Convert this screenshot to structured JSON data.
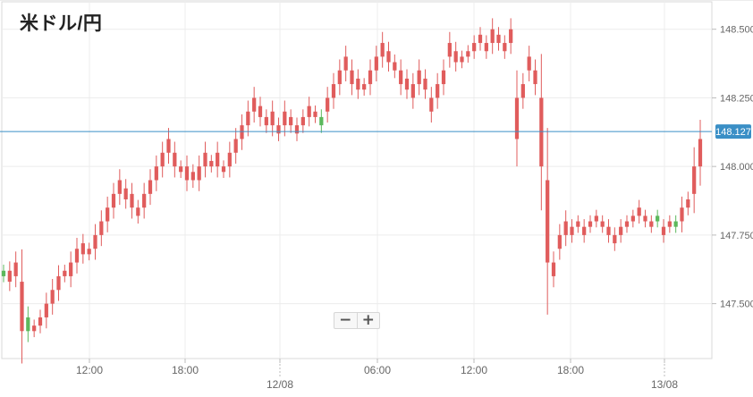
{
  "title": "米ドル/円",
  "zoom": {
    "minus_label": "−",
    "plus_label": "+"
  },
  "colors": {
    "up": "#5cb85c",
    "down": "#e05c5c",
    "current_line": "#3a8fc6",
    "current_badge": "#3a8fc6",
    "grid": "#ececec",
    "axis_text": "#666666"
  },
  "chart_data": {
    "type": "candlestick",
    "title": "米ドル/円",
    "xlabel": "",
    "ylabel": "",
    "x_tick_labels": [
      {
        "time": "12:00",
        "date": ""
      },
      {
        "time": "18:00",
        "date": ""
      },
      {
        "time": "",
        "date": "12/08"
      },
      {
        "time": "06:00",
        "date": ""
      },
      {
        "time": "12:00",
        "date": ""
      },
      {
        "time": "18:00",
        "date": ""
      },
      {
        "time": "",
        "date": "13/08"
      }
    ],
    "y_tick_labels": [
      "148.500",
      "148.250",
      "148.000",
      "147.750",
      "147.500"
    ],
    "y_ticks": [
      148.5,
      148.25,
      148.0,
      147.75,
      147.5
    ],
    "ylim": [
      147.3,
      148.6
    ],
    "grid": true,
    "current_price": 148.127,
    "current_price_label": "148.127",
    "candle_series": [
      [
        147.6,
        147.62
      ],
      [
        147.62,
        147.58
      ],
      [
        147.65,
        147.6
      ],
      [
        147.58,
        147.4
      ],
      [
        147.4,
        147.45
      ],
      [
        147.42,
        147.4
      ],
      [
        147.45,
        147.42
      ],
      [
        147.5,
        147.45
      ],
      [
        147.55,
        147.5
      ],
      [
        147.6,
        147.55
      ],
      [
        147.62,
        147.6
      ],
      [
        147.65,
        147.6
      ],
      [
        147.7,
        147.65
      ],
      [
        147.72,
        147.68
      ],
      [
        147.7,
        147.68
      ],
      [
        147.75,
        147.7
      ],
      [
        147.8,
        147.75
      ],
      [
        147.85,
        147.8
      ],
      [
        147.9,
        147.85
      ],
      [
        147.95,
        147.9
      ],
      [
        147.92,
        147.88
      ],
      [
        147.9,
        147.85
      ],
      [
        147.85,
        147.82
      ],
      [
        147.9,
        147.85
      ],
      [
        147.95,
        147.9
      ],
      [
        148.0,
        147.95
      ],
      [
        148.05,
        148.0
      ],
      [
        148.1,
        148.05
      ],
      [
        148.05,
        148.0
      ],
      [
        148.0,
        147.98
      ],
      [
        148.0,
        147.95
      ],
      [
        147.98,
        147.95
      ],
      [
        148.0,
        147.95
      ],
      [
        148.05,
        148.0
      ],
      [
        148.02,
        148.0
      ],
      [
        148.05,
        148.0
      ],
      [
        148.0,
        147.98
      ],
      [
        148.05,
        148.0
      ],
      [
        148.1,
        148.05
      ],
      [
        148.15,
        148.1
      ],
      [
        148.2,
        148.15
      ],
      [
        148.25,
        148.2
      ],
      [
        148.22,
        148.18
      ],
      [
        148.18,
        148.15
      ],
      [
        148.2,
        148.15
      ],
      [
        148.15,
        148.12
      ],
      [
        148.2,
        148.15
      ],
      [
        148.18,
        148.15
      ],
      [
        148.15,
        148.12
      ],
      [
        148.18,
        148.15
      ],
      [
        148.22,
        148.18
      ],
      [
        148.2,
        148.18
      ],
      [
        148.15,
        148.18
      ],
      [
        148.25,
        148.2
      ],
      [
        148.3,
        148.25
      ],
      [
        148.35,
        148.3
      ],
      [
        148.4,
        148.35
      ],
      [
        148.35,
        148.3
      ],
      [
        148.32,
        148.28
      ],
      [
        148.3,
        148.28
      ],
      [
        148.35,
        148.3
      ],
      [
        148.4,
        148.35
      ],
      [
        148.45,
        148.4
      ],
      [
        148.42,
        148.38
      ],
      [
        148.38,
        148.35
      ],
      [
        148.35,
        148.3
      ],
      [
        148.32,
        148.28
      ],
      [
        148.3,
        148.25
      ],
      [
        148.35,
        148.3
      ],
      [
        148.32,
        148.28
      ],
      [
        148.25,
        148.2
      ],
      [
        148.3,
        148.25
      ],
      [
        148.35,
        148.3
      ],
      [
        148.45,
        148.4
      ],
      [
        148.42,
        148.38
      ],
      [
        148.4,
        148.38
      ],
      [
        148.42,
        148.4
      ],
      [
        148.45,
        148.42
      ],
      [
        148.48,
        148.45
      ],
      [
        148.45,
        148.42
      ],
      [
        148.5,
        148.45
      ],
      [
        148.48,
        148.45
      ],
      [
        148.45,
        148.42
      ],
      [
        148.5,
        148.45
      ],
      [
        148.25,
        148.1
      ],
      [
        148.3,
        148.25
      ],
      [
        148.4,
        148.35
      ],
      [
        148.35,
        148.3
      ],
      [
        148.25,
        148.0
      ],
      [
        147.95,
        147.65
      ],
      [
        147.65,
        147.6
      ],
      [
        147.75,
        147.7
      ],
      [
        147.8,
        147.75
      ],
      [
        147.78,
        147.75
      ],
      [
        147.8,
        147.78
      ],
      [
        147.78,
        147.75
      ],
      [
        147.8,
        147.78
      ],
      [
        147.82,
        147.8
      ],
      [
        147.8,
        147.78
      ],
      [
        147.78,
        147.75
      ],
      [
        147.75,
        147.72
      ],
      [
        147.78,
        147.75
      ],
      [
        147.8,
        147.78
      ],
      [
        147.82,
        147.8
      ],
      [
        147.85,
        147.82
      ],
      [
        147.82,
        147.8
      ],
      [
        147.8,
        147.78
      ],
      [
        147.8,
        147.82
      ],
      [
        147.78,
        147.75
      ],
      [
        147.8,
        147.78
      ],
      [
        147.78,
        147.8
      ],
      [
        147.85,
        147.8
      ],
      [
        147.88,
        147.85
      ],
      [
        148.0,
        147.9
      ],
      [
        148.1,
        148.0
      ]
    ]
  }
}
